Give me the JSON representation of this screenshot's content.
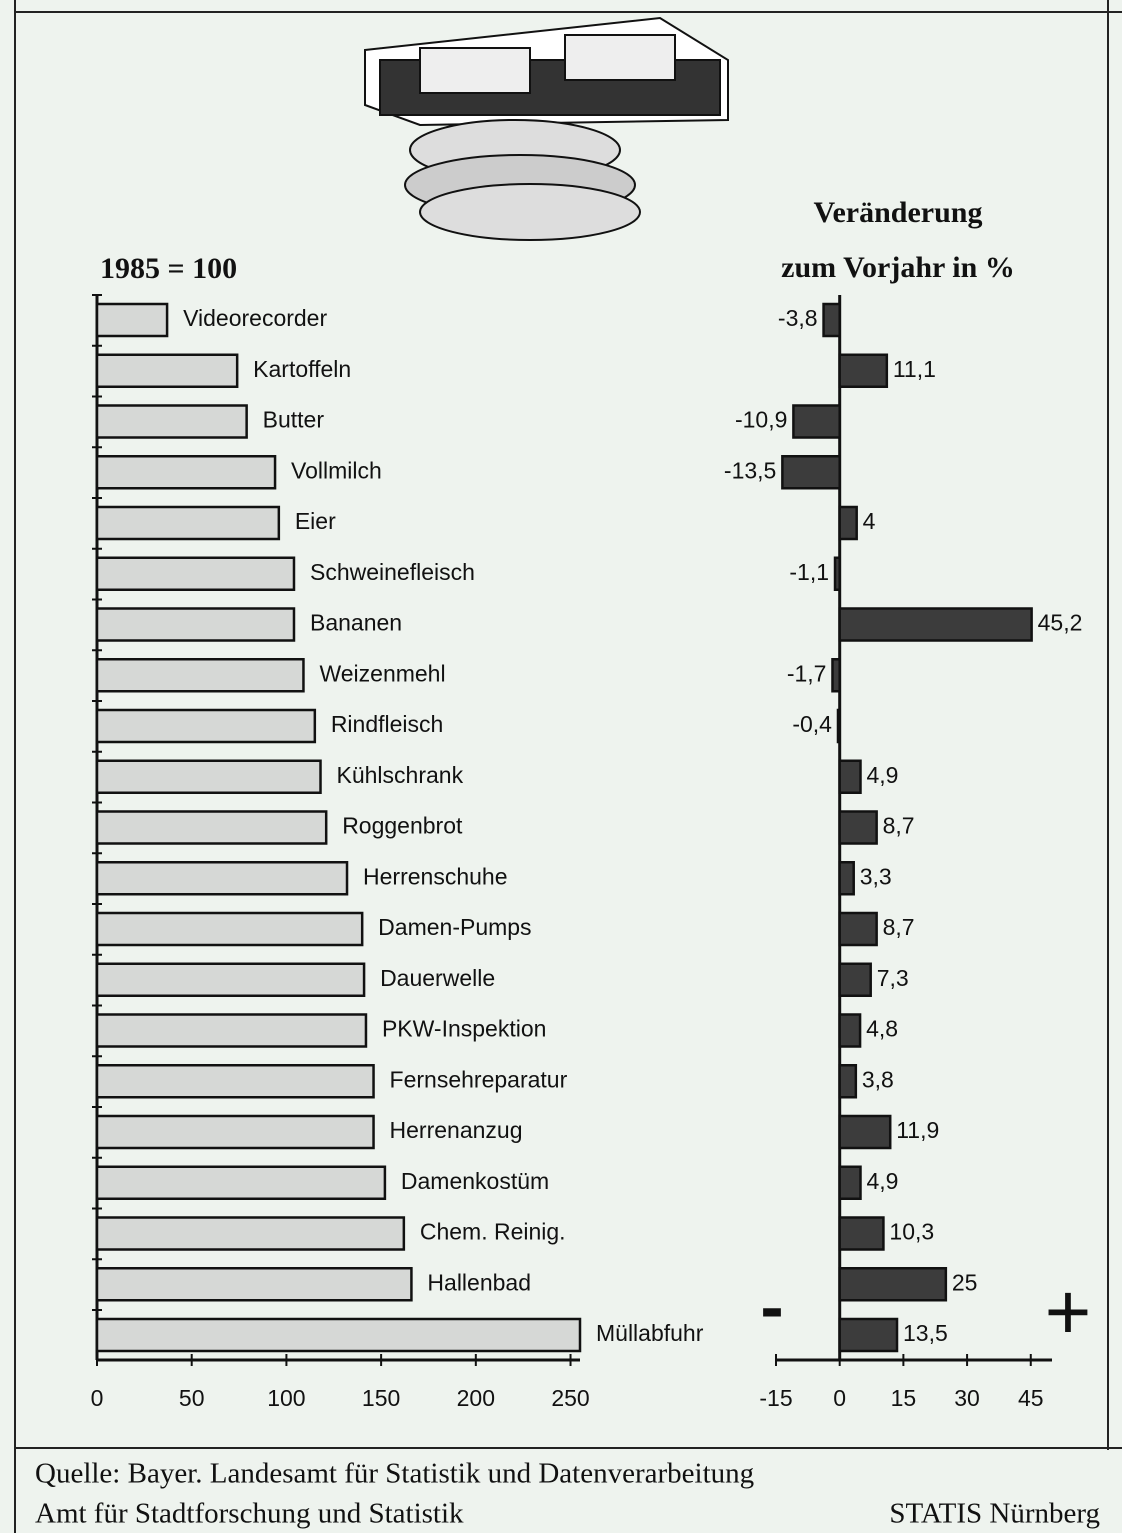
{
  "chart_data": [
    {
      "type": "bar",
      "orientation": "horizontal",
      "subtitle": "1985 = 100",
      "categories": [
        "Videorecorder",
        "Kartoffeln",
        "Butter",
        "Vollmilch",
        "Eier",
        "Schweinefleisch",
        "Bananen",
        "Weizenmehl",
        "Rindfleisch",
        "Kühlschrank",
        "Roggenbrot",
        "Herrenschuhe",
        "Damen-Pumps",
        "Dauerwelle",
        "PKW-Inspektion",
        "Fernsehreparatur",
        "Herrenanzug",
        "Damenkostüm",
        "Chem. Reinig.",
        "Hallenbad",
        "Müllabfuhr"
      ],
      "values": [
        37,
        74,
        79,
        94,
        96,
        104,
        104,
        109,
        115,
        118,
        121,
        132,
        140,
        141,
        142,
        146,
        146,
        152,
        162,
        166,
        255
      ],
      "color": "#d6d8d6",
      "xlim": [
        0,
        255
      ],
      "xticks": [
        0,
        50,
        100,
        150,
        200,
        250
      ]
    },
    {
      "type": "bar",
      "orientation": "horizontal",
      "title": [
        "Veränderung",
        "zum Vorjahr in %"
      ],
      "values": [
        -3.8,
        11.1,
        -10.9,
        -13.5,
        4,
        -1.1,
        45.2,
        -1.7,
        -0.4,
        4.9,
        8.7,
        3.3,
        8.7,
        7.3,
        4.8,
        3.8,
        11.9,
        4.9,
        10.3,
        25,
        13.5
      ],
      "value_labels": [
        "-3,8",
        "11,1",
        "-10,9",
        "-13,5",
        "4",
        "-1,1",
        "45,2",
        "-1,7",
        "-0,4",
        "4,9",
        "8,7",
        "3,3",
        "8,7",
        "7,3",
        "4,8",
        "3,8",
        "11,9",
        "4,9",
        "10,3",
        "25",
        "13,5"
      ],
      "color": "#3c3c3c",
      "xlim": [
        -15,
        50
      ],
      "xticks": [
        -15,
        0,
        15,
        30,
        45
      ],
      "annotations": [
        "-",
        "+"
      ]
    }
  ],
  "footer": {
    "source": "Quelle: Bayer. Landesamt für Statistik und Datenverarbeitung",
    "office": "Amt für Stadtforschung und Statistik",
    "brand": "STATIS Nürnberg"
  }
}
